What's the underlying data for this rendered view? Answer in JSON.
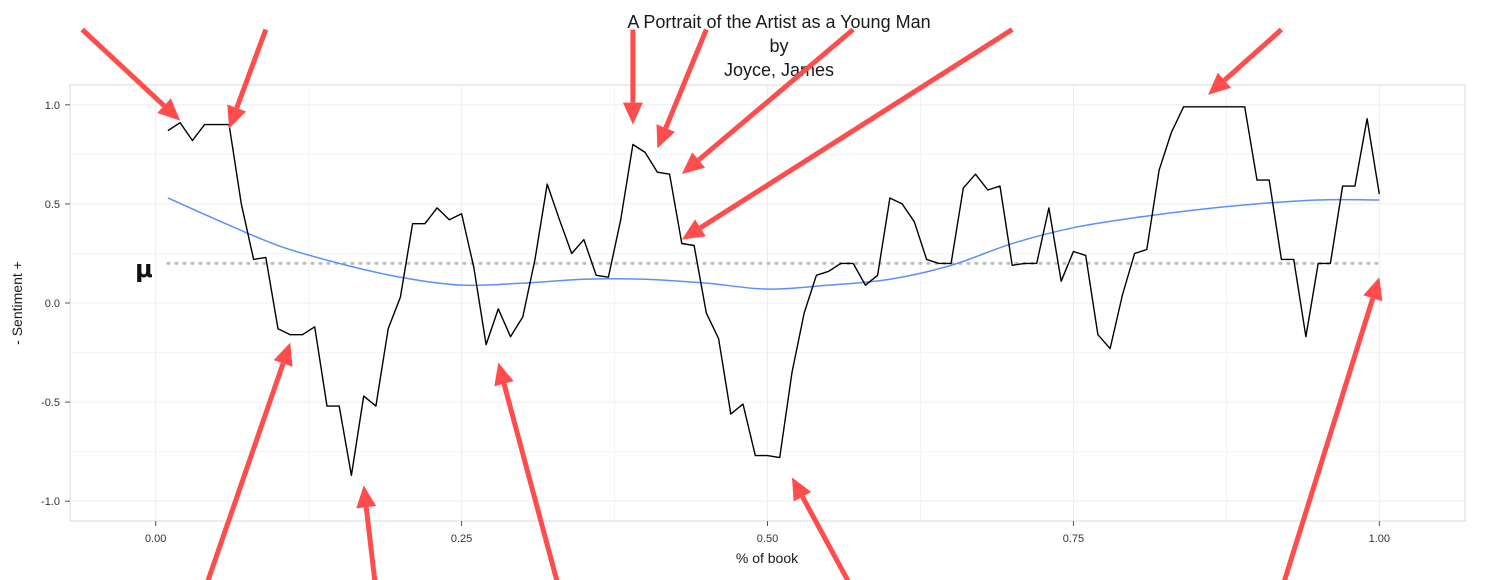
{
  "chart_data": {
    "type": "line",
    "title": [
      "A Portrait of the Artist as a Young Man",
      "by",
      "Joyce, James"
    ],
    "xlabel": "% of book",
    "ylabel": "- Sentiment +",
    "xlim": [
      -0.07,
      1.07
    ],
    "ylim": [
      -1.1,
      1.1
    ],
    "x_ticks": [
      0,
      0.25,
      0.5,
      0.75,
      1
    ],
    "x_tick_labels": [
      "0.00",
      "0.25",
      "0.50",
      "0.75",
      "1.00"
    ],
    "y_ticks": [
      1,
      0.5,
      0,
      -0.5,
      -1
    ],
    "y_tick_labels": [
      "1.0",
      "0.5",
      "0.0",
      "-0.5",
      "-1.0"
    ],
    "grid": true,
    "mean_label": "μ",
    "mean_value": 0.2,
    "colors": {
      "sentiment_line": "#000000",
      "smooth_line": "#5b8ff9",
      "mean_line": "#bdbdbd",
      "arrows": "#ff4d4d",
      "panel_border": "#d9d9d9",
      "grid": "#ededed"
    },
    "series": [
      {
        "role": "sentiment",
        "x": [
          0.01,
          0.02,
          0.03,
          0.04,
          0.05,
          0.06,
          0.07,
          0.08,
          0.09,
          0.1,
          0.11,
          0.12,
          0.13,
          0.14,
          0.15,
          0.16,
          0.17,
          0.18,
          0.19,
          0.2,
          0.21,
          0.22,
          0.23,
          0.24,
          0.25,
          0.26,
          0.27,
          0.28,
          0.29,
          0.3,
          0.31,
          0.32,
          0.33,
          0.34,
          0.35,
          0.36,
          0.37,
          0.38,
          0.39,
          0.4,
          0.41,
          0.42,
          0.43,
          0.44,
          0.45,
          0.46,
          0.47,
          0.48,
          0.49,
          0.5,
          0.51,
          0.52,
          0.53,
          0.54,
          0.55,
          0.56,
          0.57,
          0.58,
          0.59,
          0.6,
          0.61,
          0.62,
          0.63,
          0.64,
          0.65,
          0.66,
          0.67,
          0.68,
          0.69,
          0.7,
          0.71,
          0.72,
          0.73,
          0.74,
          0.75,
          0.76,
          0.77,
          0.78,
          0.79,
          0.8,
          0.81,
          0.82,
          0.83,
          0.84,
          0.85,
          0.86,
          0.87,
          0.88,
          0.89,
          0.9,
          0.91,
          0.92,
          0.93,
          0.94,
          0.95,
          0.96,
          0.97,
          0.98,
          0.99,
          1.0
        ],
        "y": [
          0.87,
          0.91,
          0.82,
          0.9,
          0.9,
          0.9,
          0.5,
          0.22,
          0.23,
          -0.13,
          -0.16,
          -0.16,
          -0.12,
          -0.52,
          -0.52,
          -0.87,
          -0.47,
          -0.52,
          -0.13,
          0.03,
          0.4,
          0.4,
          0.48,
          0.42,
          0.45,
          0.18,
          -0.21,
          -0.03,
          -0.17,
          -0.07,
          0.22,
          0.6,
          0.42,
          0.25,
          0.32,
          0.14,
          0.13,
          0.42,
          0.8,
          0.76,
          0.66,
          0.65,
          0.3,
          0.29,
          -0.05,
          -0.18,
          -0.56,
          -0.51,
          -0.77,
          -0.77,
          -0.78,
          -0.35,
          -0.05,
          0.14,
          0.16,
          0.2,
          0.2,
          0.09,
          0.14,
          0.53,
          0.5,
          0.41,
          0.22,
          0.2,
          0.2,
          0.58,
          0.65,
          0.57,
          0.59,
          0.19,
          0.2,
          0.2,
          0.48,
          0.11,
          0.26,
          0.24,
          -0.16,
          -0.23,
          0.04,
          0.25,
          0.27,
          0.67,
          0.86,
          0.99,
          0.99,
          0.99,
          0.99,
          0.99,
          0.99,
          0.62,
          0.62,
          0.22,
          0.22,
          -0.17,
          0.2,
          0.2,
          0.59,
          0.59,
          0.93,
          0.55
        ]
      },
      {
        "role": "smooth",
        "x": [
          0.01,
          0.05,
          0.1,
          0.15,
          0.2,
          0.25,
          0.3,
          0.35,
          0.4,
          0.45,
          0.5,
          0.55,
          0.6,
          0.65,
          0.7,
          0.75,
          0.8,
          0.85,
          0.9,
          0.95,
          1.0
        ],
        "y": [
          0.53,
          0.42,
          0.29,
          0.2,
          0.13,
          0.09,
          0.1,
          0.12,
          0.12,
          0.1,
          0.07,
          0.09,
          0.12,
          0.19,
          0.3,
          0.38,
          0.43,
          0.47,
          0.5,
          0.52,
          0.52
        ]
      }
    ],
    "annotation_arrows": [
      {
        "from": [
          -0.06,
          1.38
        ],
        "to": [
          0.02,
          0.92
        ]
      },
      {
        "from": [
          0.09,
          1.38
        ],
        "to": [
          0.06,
          0.88
        ]
      },
      {
        "from": [
          0.39,
          1.38
        ],
        "to": [
          0.39,
          0.9
        ]
      },
      {
        "from": [
          0.45,
          1.38
        ],
        "to": [
          0.41,
          0.78
        ]
      },
      {
        "from": [
          0.57,
          1.38
        ],
        "to": [
          0.43,
          0.65
        ]
      },
      {
        "from": [
          0.7,
          1.38
        ],
        "to": [
          0.43,
          0.32
        ]
      },
      {
        "from": [
          0.92,
          1.38
        ],
        "to": [
          0.86,
          1.05
        ]
      },
      {
        "from": [
          0.04,
          -1.45
        ],
        "to": [
          0.11,
          -0.2
        ]
      },
      {
        "from": [
          0.18,
          -1.45
        ],
        "to": [
          0.17,
          -0.92
        ]
      },
      {
        "from": [
          0.33,
          -1.45
        ],
        "to": [
          0.28,
          -0.3
        ]
      },
      {
        "from": [
          0.57,
          -1.45
        ],
        "to": [
          0.52,
          -0.88
        ]
      },
      {
        "from": [
          0.92,
          -1.45
        ],
        "to": [
          1.0,
          0.13
        ]
      }
    ]
  }
}
